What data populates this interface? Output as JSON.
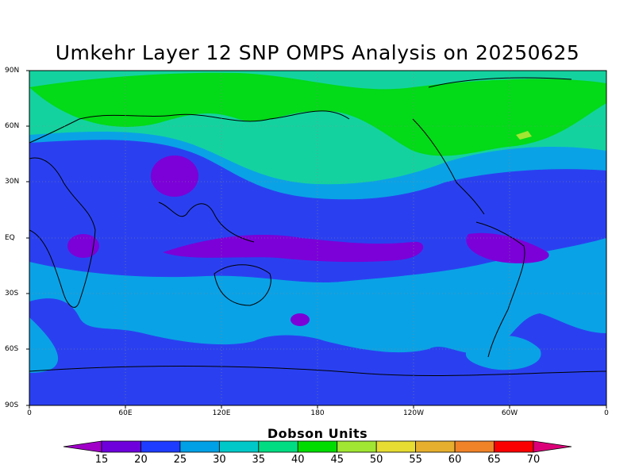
{
  "title": "Umkehr Layer 12 SNP OMPS Analysis on 20250625",
  "map": {
    "projection": "cylindrical equidistant",
    "lat_range": [
      -90,
      90
    ],
    "lon_range": [
      0,
      360
    ],
    "grid": true,
    "lat_ticks": [
      "90N",
      "60N",
      "30N",
      "EQ",
      "30S",
      "60S",
      "90S"
    ],
    "lon_ticks": [
      "0",
      "60E",
      "120E",
      "180",
      "120W",
      "60W",
      "0"
    ]
  },
  "colorbar": {
    "title": "Dobson Units",
    "labels": [
      "15",
      "20",
      "25",
      "30",
      "35",
      "40",
      "45",
      "50",
      "55",
      "60",
      "65",
      "70"
    ],
    "colors": [
      "#a000c8",
      "#6e00dc",
      "#1e3cff",
      "#00a0e6",
      "#00c8c8",
      "#00dc82",
      "#00dc00",
      "#a0e632",
      "#e6dc32",
      "#e6af2d",
      "#f08228",
      "#fa0000",
      "#dc0078"
    ]
  }
}
